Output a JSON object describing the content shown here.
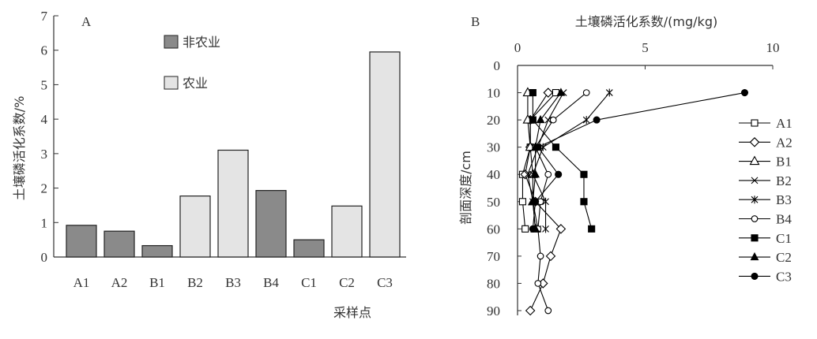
{
  "colors": {
    "axis": "#333333",
    "nonag_fill": "#8a8a8a",
    "ag_fill": "#e4e4e4",
    "line": "#000000"
  },
  "chart_data": [
    {
      "type": "bar",
      "panel_label": "A",
      "ylabel": "土壤磷活化系数/%",
      "xlabel": "采样点",
      "ylim": [
        0,
        7
      ],
      "yticks": [
        "0",
        "1",
        "2",
        "3",
        "4",
        "5",
        "6",
        "7"
      ],
      "categories": [
        "A1",
        "A2",
        "B1",
        "B2",
        "B3",
        "B4",
        "C1",
        "C2",
        "C3"
      ],
      "bar_values": [
        0.92,
        0.75,
        0.33,
        1.77,
        3.1,
        1.93,
        0.5,
        1.48,
        5.95
      ],
      "bar_groups": [
        "nonag",
        "nonag",
        "nonag",
        "ag",
        "ag",
        "nonag",
        "nonag",
        "ag",
        "ag"
      ],
      "series": [
        {
          "name": "非农业",
          "key": "nonag"
        },
        {
          "name": "农业",
          "key": "ag"
        }
      ],
      "legend_position": "top-center",
      "grid": false
    },
    {
      "type": "line",
      "panel_label": "B",
      "xlabel": "土壤磷活化系数/(mg/kg)",
      "ylabel": "剖面深度/cm",
      "xlim": [
        0,
        10
      ],
      "ylim": [
        0,
        90
      ],
      "xticks": [
        "0",
        "5",
        "10"
      ],
      "yticks": [
        "0",
        "10",
        "20",
        "30",
        "40",
        "50",
        "60",
        "70",
        "80",
        "90"
      ],
      "x_axis_position": "top",
      "y_axis_inverted": true,
      "legend_position": "right",
      "grid": false,
      "series": [
        {
          "name": "A1",
          "marker": "square-open",
          "points": [
            [
              1.5,
              10
            ],
            [
              0.5,
              20
            ],
            [
              0.5,
              30
            ],
            [
              0.2,
              40
            ],
            [
              0.2,
              50
            ],
            [
              0.3,
              60
            ]
          ]
        },
        {
          "name": "A2",
          "marker": "diamond-open",
          "points": [
            [
              1.2,
              10
            ],
            [
              0.5,
              20
            ],
            [
              0.5,
              30
            ],
            [
              0.3,
              40
            ],
            [
              0.7,
              50
            ],
            [
              1.7,
              60
            ],
            [
              1.3,
              70
            ],
            [
              1.0,
              80
            ],
            [
              0.5,
              90
            ]
          ]
        },
        {
          "name": "B1",
          "marker": "triangle-open",
          "points": [
            [
              0.4,
              10
            ],
            [
              0.4,
              20
            ],
            [
              0.5,
              30
            ],
            [
              0.6,
              40
            ],
            [
              0.6,
              50
            ],
            [
              0.7,
              60
            ]
          ]
        },
        {
          "name": "B2",
          "marker": "x",
          "points": [
            [
              1.8,
              10
            ],
            [
              1.2,
              20
            ],
            [
              0.8,
              30
            ],
            [
              0.4,
              40
            ],
            [
              0.6,
              50
            ],
            [
              0.8,
              60
            ]
          ]
        },
        {
          "name": "B3",
          "marker": "star",
          "points": [
            [
              3.6,
              10
            ],
            [
              2.7,
              20
            ],
            [
              1.0,
              30
            ],
            [
              0.6,
              40
            ],
            [
              1.1,
              50
            ],
            [
              1.1,
              60
            ]
          ]
        },
        {
          "name": "B4",
          "marker": "circle-open",
          "points": [
            [
              2.7,
              10
            ],
            [
              1.4,
              20
            ],
            [
              0.7,
              30
            ],
            [
              1.2,
              40
            ],
            [
              0.9,
              50
            ],
            [
              0.8,
              60
            ],
            [
              0.9,
              70
            ],
            [
              0.8,
              80
            ],
            [
              1.2,
              90
            ]
          ]
        },
        {
          "name": "C1",
          "marker": "square-filled",
          "points": [
            [
              0.6,
              10
            ],
            [
              0.6,
              20
            ],
            [
              1.5,
              30
            ],
            [
              2.6,
              40
            ],
            [
              2.6,
              50
            ],
            [
              2.9,
              60
            ]
          ]
        },
        {
          "name": "C2",
          "marker": "triangle-filled",
          "points": [
            [
              1.7,
              10
            ],
            [
              0.9,
              20
            ],
            [
              0.7,
              30
            ],
            [
              0.7,
              40
            ],
            [
              0.6,
              50
            ],
            [
              0.7,
              60
            ]
          ]
        },
        {
          "name": "C3",
          "marker": "circle-filled",
          "points": [
            [
              8.9,
              10
            ],
            [
              3.1,
              20
            ],
            [
              0.8,
              30
            ],
            [
              1.6,
              40
            ],
            [
              0.7,
              50
            ],
            [
              0.6,
              60
            ]
          ]
        }
      ]
    }
  ]
}
